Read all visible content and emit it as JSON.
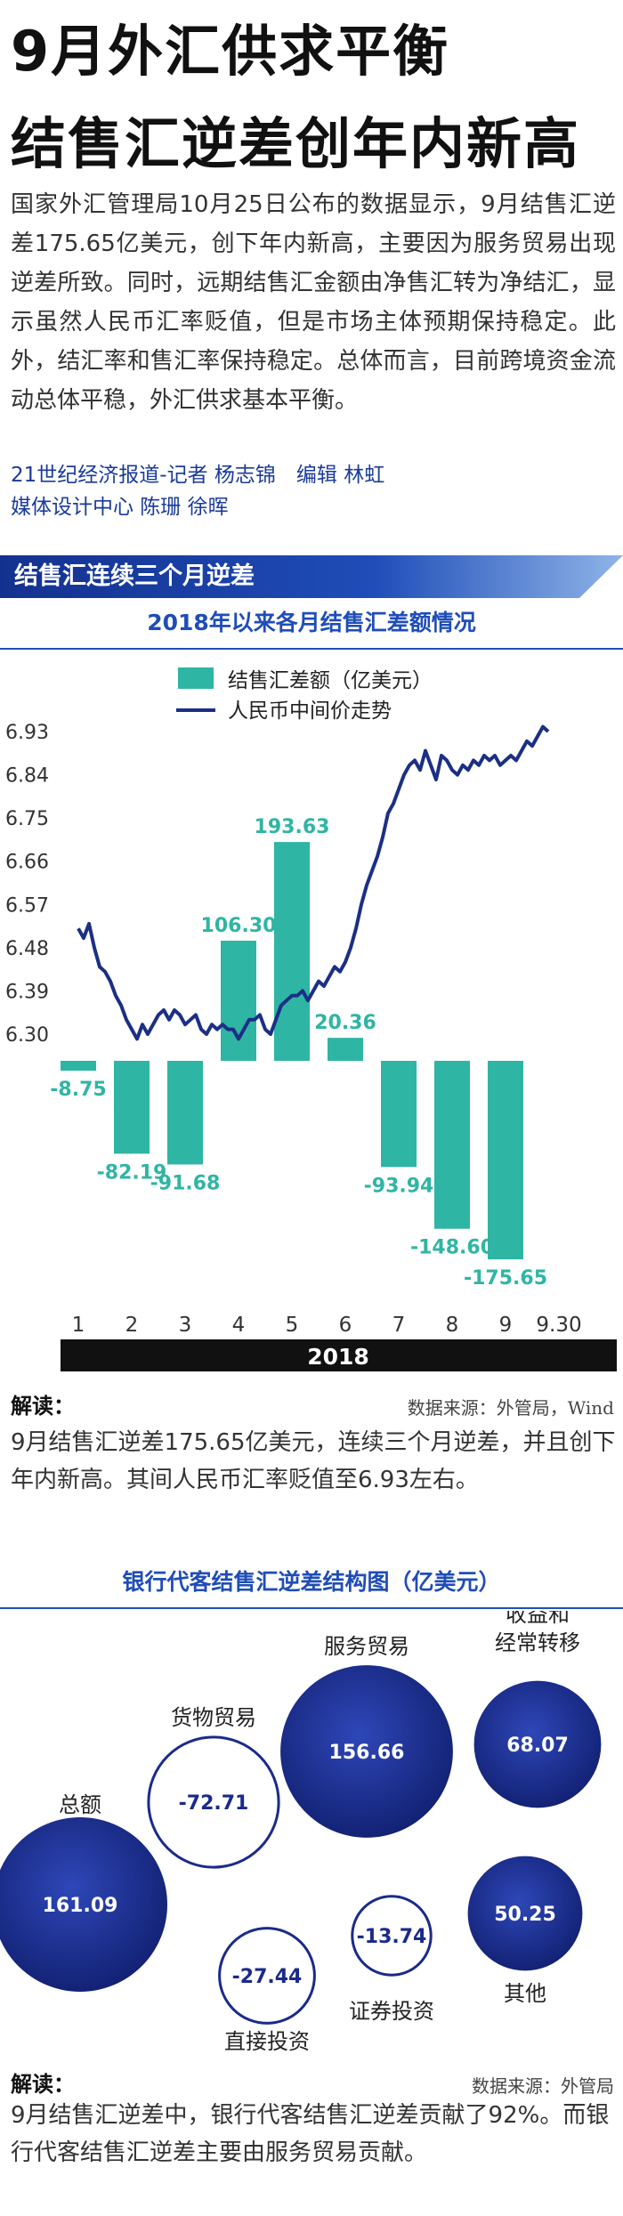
{
  "headline": [
    "9月外汇供求平衡",
    "结售汇逆差创年内新高"
  ],
  "intro": "国家外汇管理局10月25日公布的数据显示，9月结售汇逆差175.65亿美元，创下年内新高，主要因为服务贸易出现逆差所致。同时，远期结售汇金额由净售汇转为净结汇，显示虽然人民币汇率贬值，但是市场主体预期保持稳定。此外，结汇率和售汇率保持稳定。总体而言，目前跨境资金流动总体平稳，外汇供求基本平衡。",
  "byline": {
    "line1": "21世纪经济报道-记者 杨志锦　编辑 林虹",
    "line2": "媒体设计中心 陈珊 徐晖"
  },
  "section_heading": "结售汇连续三个月逆差",
  "chart_data": [
    {
      "type": "bar",
      "title": "2018年以来各月结售汇差额情况",
      "categories": [
        "1",
        "2",
        "3",
        "4",
        "5",
        "6",
        "7",
        "8",
        "9"
      ],
      "x_axis_year": "2018",
      "x_tick_labels": [
        "1",
        "2",
        "3",
        "4",
        "5",
        "6",
        "7",
        "8",
        "9",
        "9.30"
      ],
      "series": [
        {
          "name": "结售汇差额（亿美元）",
          "type": "bar",
          "values": [
            -8.75,
            -82.19,
            -91.68,
            106.3,
            193.63,
            20.36,
            -93.94,
            -148.6,
            -175.65
          ],
          "labels": [
            "-8.75",
            "-82.19",
            "-91.68",
            "106.30",
            "193.63",
            "20.36",
            "-93.94",
            "-148.60",
            "-175.65"
          ],
          "color": "#2fb5a4"
        },
        {
          "name": "人民币中间价走势",
          "type": "line",
          "color": "#1b2f86",
          "x": [
            1.0,
            1.1,
            1.2,
            1.3,
            1.4,
            1.5,
            1.6,
            1.7,
            1.8,
            1.9,
            2.0,
            2.1,
            2.2,
            2.3,
            2.4,
            2.5,
            2.6,
            2.7,
            2.8,
            2.9,
            3.0,
            3.1,
            3.2,
            3.3,
            3.4,
            3.5,
            3.6,
            3.7,
            3.8,
            3.9,
            4.0,
            4.1,
            4.2,
            4.3,
            4.4,
            4.5,
            4.6,
            4.7,
            4.8,
            4.9,
            5.0,
            5.1,
            5.2,
            5.3,
            5.4,
            5.5,
            5.6,
            5.7,
            5.8,
            5.9,
            6.0,
            6.1,
            6.2,
            6.3,
            6.4,
            6.5,
            6.6,
            6.7,
            6.8,
            6.9,
            7.0,
            7.1,
            7.2,
            7.3,
            7.4,
            7.5,
            7.6,
            7.7,
            7.8,
            7.9,
            8.0,
            8.1,
            8.2,
            8.3,
            8.4,
            8.5,
            8.6,
            8.7,
            8.8,
            8.9,
            9.0,
            9.1,
            9.2,
            9.3,
            9.4,
            9.5,
            9.6,
            9.7,
            9.8
          ],
          "values": [
            6.52,
            6.5,
            6.53,
            6.48,
            6.44,
            6.43,
            6.41,
            6.38,
            6.36,
            6.33,
            6.31,
            6.29,
            6.32,
            6.3,
            6.32,
            6.34,
            6.35,
            6.33,
            6.35,
            6.34,
            6.32,
            6.33,
            6.34,
            6.31,
            6.3,
            6.32,
            6.31,
            6.32,
            6.31,
            6.31,
            6.29,
            6.31,
            6.33,
            6.33,
            6.34,
            6.31,
            6.3,
            6.33,
            6.36,
            6.37,
            6.38,
            6.38,
            6.39,
            6.37,
            6.39,
            6.41,
            6.4,
            6.42,
            6.44,
            6.43,
            6.45,
            6.48,
            6.52,
            6.57,
            6.61,
            6.64,
            6.67,
            6.71,
            6.76,
            6.78,
            6.81,
            6.84,
            6.86,
            6.87,
            6.85,
            6.89,
            6.86,
            6.83,
            6.88,
            6.87,
            6.85,
            6.84,
            6.86,
            6.85,
            6.87,
            6.86,
            6.88,
            6.87,
            6.88,
            6.86,
            6.87,
            6.88,
            6.87,
            6.89,
            6.91,
            6.9,
            6.92,
            6.94,
            6.93
          ]
        }
      ],
      "y_ticks": [
        "6.93",
        "6.84",
        "6.75",
        "6.66",
        "6.57",
        "6.48",
        "6.39",
        "6.30"
      ],
      "ylim_bar": [
        -175.65,
        193.63
      ],
      "ylim_line": [
        6.3,
        6.93
      ]
    },
    {
      "type": "bubble",
      "title": "银行代客结售汇逆差结构图（亿美元）",
      "items": [
        {
          "name": "总额",
          "value": 161.09,
          "label": "161.09"
        },
        {
          "name": "货物贸易",
          "value": -72.71,
          "label": "-72.71"
        },
        {
          "name": "服务贸易",
          "value": 156.66,
          "label": "156.66"
        },
        {
          "name": "收益和经常转移",
          "value": 68.07,
          "label": "68.07"
        },
        {
          "name": "直接投资",
          "value": -27.44,
          "label": "-27.44"
        },
        {
          "name": "证券投资",
          "value": -13.74,
          "label": "-13.74"
        },
        {
          "name": "其他",
          "value": 50.25,
          "label": "50.25"
        }
      ]
    }
  ],
  "note1": {
    "label": "解读：",
    "source": "数据来源：外管局，Wind",
    "text": "9月结售汇逆差175.65亿美元，连续三个月逆差，并且创下年内新高。其间人民币汇率贬值至6.93左右。"
  },
  "note2": {
    "label": "解读：",
    "source": "数据来源：外管局",
    "text": "9月结售汇逆差中，银行代客结售汇逆差贡献了92%。而银行代客结售汇逆差主要由服务贸易贡献。"
  },
  "colors": {
    "accent_blue": "#1f4db8",
    "bar_teal": "#2fb5a4",
    "line_navy": "#1b2f86",
    "bubble_dark": "#1a2a8c"
  }
}
